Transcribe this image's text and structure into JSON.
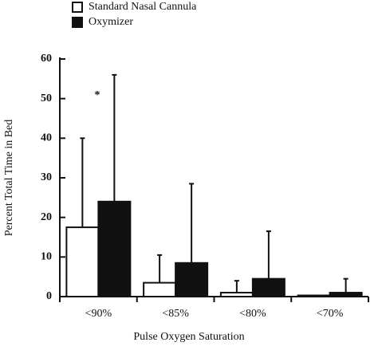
{
  "chart_data": {
    "type": "bar",
    "x_label": "Pulse Oxygen Saturation",
    "y_label": "Percent Total Time in Bed",
    "categories": [
      "<90%",
      "<85%",
      "<80%",
      "<70%"
    ],
    "series": [
      {
        "name": "Standard Nasal Cannula",
        "color": "#ffffff",
        "values": [
          17.5,
          3.5,
          1,
          0.3
        ],
        "errors": [
          22.5,
          7,
          3,
          0
        ]
      },
      {
        "name": "Oxymizer",
        "color": "#111111",
        "values": [
          24,
          8.5,
          4.5,
          1
        ],
        "errors": [
          32,
          20,
          12,
          3.5
        ]
      }
    ],
    "annotations": [
      "*"
    ],
    "ylim": [
      0,
      60
    ],
    "yticks": [
      0,
      10,
      20,
      30,
      40,
      50,
      60
    ],
    "legend": "top-left"
  }
}
